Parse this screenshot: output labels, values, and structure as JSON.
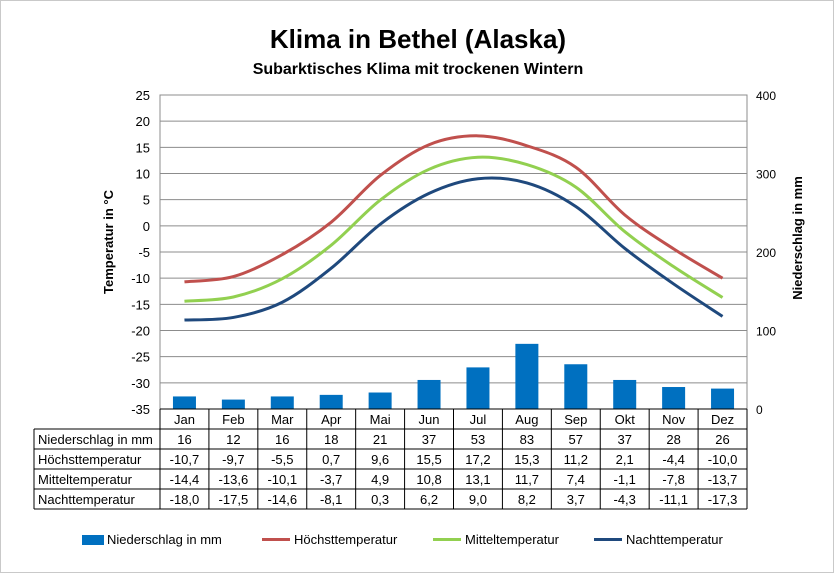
{
  "chart_data": {
    "type": "bar+line",
    "title": "Klima in Bethel (Alaska)",
    "subtitle": "Subarktisches Klima mit trockenen Wintern",
    "ylabel_left": "Temperatur in °C",
    "ylabel_right": "Niederschlag in mm",
    "ylim_left": [
      -35,
      25
    ],
    "yticks_left": [
      25,
      20,
      15,
      10,
      5,
      0,
      -5,
      -10,
      -15,
      -20,
      -25,
      -30,
      -35
    ],
    "ylim_right": [
      0,
      400
    ],
    "yticks_right": [
      400,
      300,
      200,
      100,
      0
    ],
    "grid": true,
    "legend_position": "bottom",
    "categories": [
      "Jan",
      "Feb",
      "Mar",
      "Apr",
      "Mai",
      "Jun",
      "Jul",
      "Aug",
      "Sep",
      "Okt",
      "Nov",
      "Dez"
    ],
    "bar_series": {
      "name": "Niederschlag in mm",
      "color": "#0070c0",
      "values": [
        16,
        12,
        16,
        18,
        21,
        37,
        53,
        83,
        57,
        37,
        28,
        26
      ],
      "labels": [
        "16",
        "12",
        "16",
        "18",
        "21",
        "37",
        "53",
        "83",
        "57",
        "37",
        "28",
        "26"
      ]
    },
    "series": [
      {
        "name": "Höchsttemperatur",
        "color": "#c0504d",
        "values": [
          -10.7,
          -9.7,
          -5.5,
          0.7,
          9.6,
          15.5,
          17.2,
          15.3,
          11.2,
          2.1,
          -4.4,
          -10.0
        ],
        "labels": [
          "-10,7",
          "-9,7",
          "-5,5",
          "0,7",
          "9,6",
          "15,5",
          "17,2",
          "15,3",
          "11,2",
          "2,1",
          "-4,4",
          "-10,0"
        ]
      },
      {
        "name": "Mitteltemperatur",
        "color": "#92d050",
        "values": [
          -14.4,
          -13.6,
          -10.1,
          -3.7,
          4.9,
          10.8,
          13.1,
          11.7,
          7.4,
          -1.1,
          -7.8,
          -13.7
        ],
        "labels": [
          "-14,4",
          "-13,6",
          "-10,1",
          "-3,7",
          "4,9",
          "10,8",
          "13,1",
          "11,7",
          "7,4",
          "-1,1",
          "-7,8",
          "-13,7"
        ]
      },
      {
        "name": "Nachttemperatur",
        "color": "#1f497d",
        "values": [
          -18.0,
          -17.5,
          -14.6,
          -8.1,
          0.3,
          6.2,
          9.0,
          8.2,
          3.7,
          -4.3,
          -11.1,
          -17.3
        ],
        "labels": [
          "-18,0",
          "-17,5",
          "-14,6",
          "-8,1",
          "0,3",
          "6,2",
          "9,0",
          "8,2",
          "3,7",
          "-4,3",
          "-11,1",
          "-17,3"
        ]
      }
    ]
  }
}
